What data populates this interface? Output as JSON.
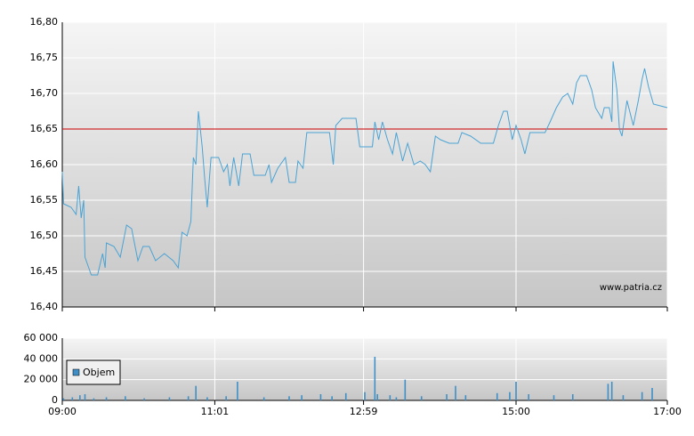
{
  "chart_data": [
    {
      "type": "line",
      "color": "#4aa3d4",
      "x": [
        "09:00",
        "09:01",
        "09:07",
        "09:11",
        "09:13",
        "09:15",
        "09:17",
        "09:18",
        "09:21",
        "09:23",
        "09:28",
        "09:32",
        "09:34",
        "09:35",
        "09:41",
        "09:46",
        "09:51",
        "09:55",
        "10:00",
        "10:04",
        "10:09",
        "10:14",
        "10:21",
        "10:28",
        "10:32",
        "10:35",
        "10:39",
        "10:42",
        "10:44",
        "10:46",
        "10:48",
        "10:51",
        "10:53",
        "10:55",
        "10:58",
        "11:04",
        "11:08",
        "11:11",
        "11:13",
        "11:16",
        "11:20",
        "11:23",
        "11:29",
        "11:32",
        "11:41",
        "11:44",
        "11:46",
        "11:51",
        "11:57",
        "12:00",
        "12:05",
        "12:07",
        "12:11",
        "12:14",
        "12:32",
        "12:35",
        "12:37",
        "12:42",
        "12:53",
        "12:56",
        "13:06",
        "13:08",
        "13:11",
        "13:14",
        "13:18",
        "13:22",
        "13:25",
        "13:30",
        "13:34",
        "13:39",
        "13:44",
        "13:48",
        "13:52",
        "13:56",
        "14:00",
        "14:07",
        "14:14",
        "14:17",
        "14:24",
        "14:32",
        "14:39",
        "14:42",
        "14:46",
        "14:50",
        "14:53",
        "14:57",
        "15:00",
        "15:04",
        "15:07",
        "15:11",
        "15:14",
        "15:18",
        "15:23",
        "15:27",
        "15:32",
        "15:37",
        "15:41",
        "15:45",
        "15:48",
        "15:51",
        "15:56",
        "16:00",
        "16:03",
        "16:08",
        "16:10",
        "16:14",
        "16:16",
        "16:17",
        "16:20",
        "16:22",
        "16:24",
        "16:28",
        "16:33",
        "16:37",
        "16:40",
        "16:42",
        "16:45",
        "16:49",
        "17:00"
      ],
      "values": [
        16.59,
        16.545,
        16.54,
        16.53,
        16.57,
        16.525,
        16.55,
        16.47,
        16.455,
        16.445,
        16.445,
        16.475,
        16.455,
        16.49,
        16.485,
        16.47,
        16.515,
        16.51,
        16.465,
        16.485,
        16.485,
        16.465,
        16.475,
        16.465,
        16.455,
        16.505,
        16.5,
        16.52,
        16.61,
        16.6,
        16.675,
        16.625,
        16.58,
        16.54,
        16.61,
        16.61,
        16.59,
        16.6,
        16.57,
        16.61,
        16.57,
        16.615,
        16.615,
        16.585,
        16.585,
        16.6,
        16.575,
        16.595,
        16.61,
        16.575,
        16.575,
        16.605,
        16.595,
        16.645,
        16.645,
        16.6,
        16.655,
        16.665,
        16.665,
        16.625,
        16.625,
        16.66,
        16.635,
        16.66,
        16.635,
        16.615,
        16.645,
        16.605,
        16.63,
        16.6,
        16.605,
        16.6,
        16.59,
        16.64,
        16.635,
        16.63,
        16.63,
        16.645,
        16.64,
        16.63,
        16.63,
        16.63,
        16.655,
        16.675,
        16.675,
        16.635,
        16.655,
        16.635,
        16.615,
        16.645,
        16.645,
        16.645,
        16.645,
        16.66,
        16.68,
        16.695,
        16.7,
        16.685,
        16.715,
        16.725,
        16.725,
        16.705,
        16.68,
        16.665,
        16.68,
        16.68,
        16.66,
        16.745,
        16.705,
        16.65,
        16.64,
        16.69,
        16.655,
        16.69,
        16.72,
        16.735,
        16.71,
        16.685,
        16.68
      ],
      "xlim": [
        "09:00",
        "17:00"
      ],
      "xticks": [
        "09:00",
        "11:01",
        "12:59",
        "15:00",
        "17:00"
      ],
      "ylim": [
        16.4,
        16.8
      ],
      "yticks": [
        {
          "value": 16.4,
          "label": "16,40"
        },
        {
          "value": 16.45,
          "label": "16,45"
        },
        {
          "value": 16.5,
          "label": "16,50"
        },
        {
          "value": 16.55,
          "label": "16,55"
        },
        {
          "value": 16.6,
          "label": "16,60"
        },
        {
          "value": 16.65,
          "label": "16,65"
        },
        {
          "value": 16.7,
          "label": "16,70"
        },
        {
          "value": 16.75,
          "label": "16,75"
        },
        {
          "value": 16.8,
          "label": "16,80"
        }
      ],
      "reference_line": {
        "value": 16.65,
        "color": "#cc0000"
      },
      "annotation": "www.patria.cz",
      "grid": true
    },
    {
      "type": "bar",
      "x": [
        "09:01",
        "09:08",
        "09:14",
        "09:18",
        "09:25",
        "09:35",
        "09:50",
        "10:05",
        "10:25",
        "10:40",
        "10:46",
        "10:55",
        "11:10",
        "11:19",
        "11:40",
        "12:00",
        "12:10",
        "12:25",
        "12:34",
        "12:45",
        "13:00",
        "13:08",
        "13:10",
        "13:20",
        "13:25",
        "13:32",
        "13:45",
        "14:05",
        "14:12",
        "14:20",
        "14:45",
        "14:55",
        "15:00",
        "15:10",
        "15:30",
        "15:45",
        "16:13",
        "16:16",
        "16:25",
        "16:40",
        "16:48"
      ],
      "series": [
        {
          "name": "Objem",
          "color": "#3f8fc6",
          "values": [
            2000,
            3000,
            5000,
            6000,
            2000,
            3000,
            4000,
            2000,
            3000,
            4000,
            14000,
            3000,
            4000,
            18000,
            3000,
            4000,
            5000,
            6000,
            4000,
            7000,
            8000,
            42000,
            6000,
            5000,
            3000,
            20000,
            4000,
            6000,
            14000,
            5000,
            7000,
            8000,
            18000,
            6000,
            5000,
            6000,
            16000,
            18000,
            5000,
            8000,
            12000
          ]
        }
      ],
      "xlim": [
        "09:00",
        "17:00"
      ],
      "xticks": [
        "09:00",
        "11:01",
        "12:59",
        "15:00",
        "17:00"
      ],
      "ylim": [
        0,
        60000
      ],
      "yticks": [
        0,
        {
          "value": 20000,
          "label": "20 000"
        },
        {
          "value": 40000,
          "label": "40 000"
        },
        {
          "value": 60000,
          "label": "60 000"
        }
      ],
      "legend": "upper left",
      "grid": true
    }
  ]
}
